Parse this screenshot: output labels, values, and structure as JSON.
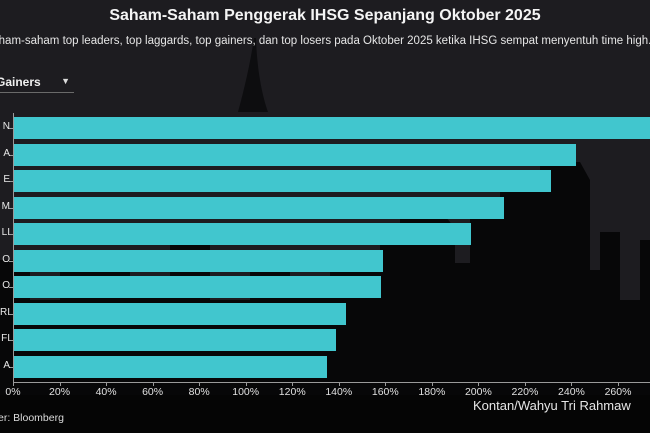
{
  "header": {
    "title": "Saham-Saham Penggerak IHSG Sepanjang Oktober 2025",
    "subtitle": "ham-saham top leaders, top laggards, top gainers, dan top losers pada Oktober 2025 ketika IHSG sempat menyentuh time high."
  },
  "dropdown": {
    "selected": "Gainers",
    "chevron": "▼"
  },
  "footer": {
    "source": "er: Bloomberg",
    "credit": "Kontan/Wahyu Tri Rahmaw"
  },
  "colors": {
    "bar": "#41c6ce",
    "background": "#1d1c20",
    "axis": "#9a9a9a"
  },
  "chart_data": {
    "type": "bar",
    "orientation": "horizontal",
    "title": "Saham-Saham Penggerak IHSG Sepanjang Oktober 2025",
    "subtitle": "Saham-saham top leaders, top laggards, top gainers, dan top losers pada Oktober 2025 ketika IHSG sempat menyentuh all time high.",
    "filter": "Gainers",
    "categories": [
      "N",
      "A",
      "E",
      "M",
      "LI",
      "O",
      "O",
      "RI",
      "FI",
      "A"
    ],
    "series": [
      {
        "name": "Gainers",
        "values": [
          285,
          242,
          231,
          211,
          197,
          159,
          158,
          143,
          139,
          135
        ]
      }
    ],
    "xlabel": "",
    "ylabel": "",
    "xticks": [
      "0%",
      "20%",
      "40%",
      "60%",
      "80%",
      "100%",
      "120%",
      "140%",
      "160%",
      "180%",
      "200%",
      "220%",
      "240%",
      "260%"
    ],
    "xlim": [
      0,
      275
    ],
    "unit": "%",
    "grid": false,
    "source": "Sumber: Bloomberg",
    "credit": "Kontan/Wahyu Tri Rahmawati"
  }
}
